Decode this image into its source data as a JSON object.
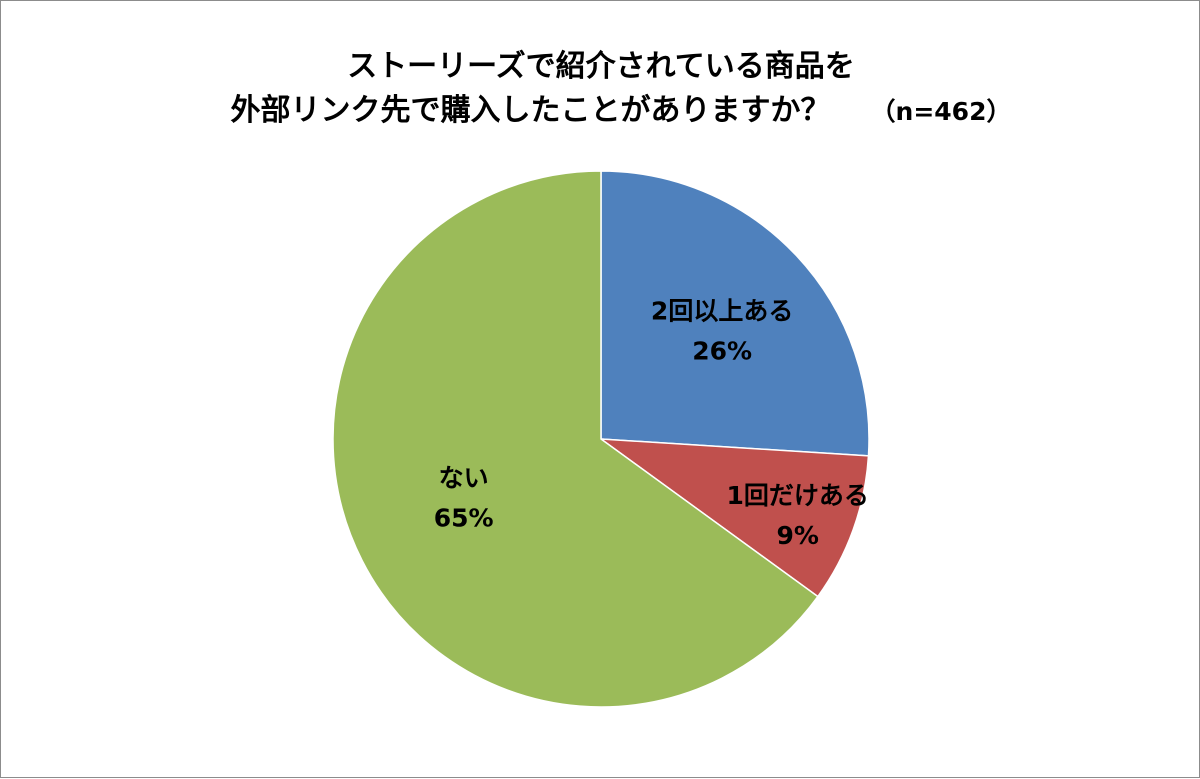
{
  "chart_data": {
    "type": "pie",
    "title": "ストーリーズで紹介されている商品を",
    "title_line2": "外部リンク先で購入したことがありますか？",
    "sample_size": "（n=462）",
    "slices": [
      {
        "name": "2回以上ある",
        "value": 26,
        "value_label": "26%",
        "color": "#4f81bd"
      },
      {
        "name": "1回だけある",
        "value": 9,
        "value_label": "9%",
        "color": "#c0504d"
      },
      {
        "name": "ない",
        "value": 65,
        "value_label": "65%",
        "color": "#9bbb59"
      }
    ],
    "start": "12 o'clock",
    "direction": "clockwise",
    "legend": "none"
  }
}
